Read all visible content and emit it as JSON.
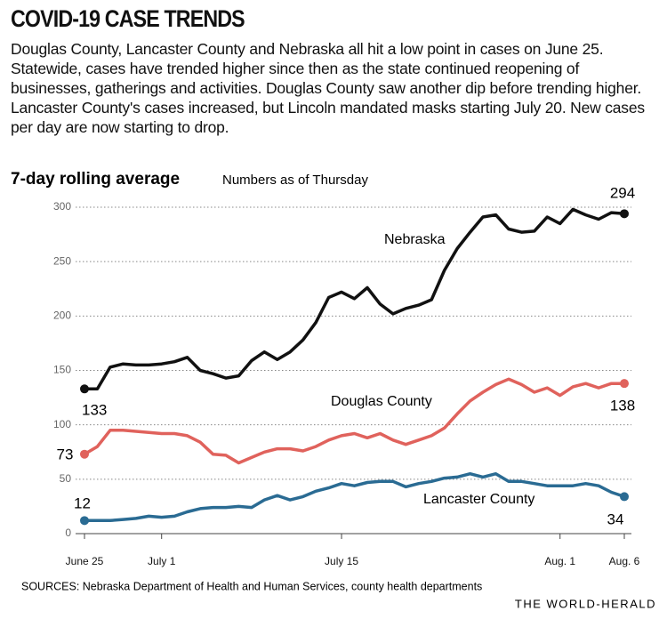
{
  "chart_data": {
    "type": "line",
    "title": "COVID-19 CASE TRENDS",
    "subtitle": "Douglas County, Lancaster County and Nebraska all hit a low point in cases on June 25. Statewide, cases have trended higher since then as the state continued reopening of businesses, gatherings and activities. Douglas County saw another dip before trending higher. Lancaster County's cases increased, but Lincoln mandated masks starting July 20. New cases per day are now starting to drop.",
    "chart_title": "7-day rolling average",
    "chart_note": "Numbers as of Thursday",
    "source": "SOURCES: Nebraska Department of Health and Human Services, county health departments",
    "credit": "THE WORLD-HERALD",
    "categories": [
      "June 25",
      null,
      null,
      null,
      null,
      null,
      "July 1",
      null,
      null,
      null,
      null,
      null,
      null,
      null,
      null,
      null,
      null,
      null,
      null,
      null,
      "July 15",
      null,
      null,
      null,
      null,
      null,
      null,
      null,
      null,
      null,
      null,
      null,
      null,
      null,
      null,
      null,
      null,
      "Aug. 1",
      null,
      null,
      null,
      null,
      "Aug. 6"
    ],
    "series": [
      {
        "name": "Nebraska",
        "color": "#111111",
        "values": [
          133,
          133,
          153,
          156,
          155,
          155,
          156,
          158,
          162,
          150,
          147,
          143,
          145,
          159,
          167,
          160,
          167,
          178,
          194,
          217,
          222,
          216,
          226,
          211,
          202,
          207,
          210,
          215,
          242,
          262,
          277,
          291,
          293,
          280,
          277,
          278,
          291,
          285,
          298,
          293,
          289,
          295,
          294
        ]
      },
      {
        "name": "Douglas County",
        "color": "#e0625c",
        "values": [
          73,
          80,
          95,
          95,
          94,
          93,
          92,
          92,
          90,
          84,
          73,
          72,
          65,
          70,
          75,
          78,
          78,
          76,
          80,
          86,
          90,
          92,
          88,
          92,
          86,
          82,
          86,
          90,
          97,
          110,
          122,
          130,
          137,
          142,
          137,
          130,
          134,
          127,
          135,
          138,
          134,
          138,
          138
        ]
      },
      {
        "name": "Lancaster County",
        "color": "#2a6b93",
        "values": [
          12,
          12,
          12,
          13,
          14,
          16,
          15,
          16,
          20,
          23,
          24,
          24,
          25,
          24,
          31,
          35,
          31,
          34,
          39,
          42,
          46,
          44,
          47,
          48,
          48,
          43,
          46,
          48,
          51,
          52,
          55,
          52,
          55,
          48,
          48,
          46,
          44,
          44,
          44,
          46,
          44,
          38,
          34
        ]
      }
    ],
    "ylim": [
      0,
      300
    ],
    "yticks": [
      0,
      50,
      100,
      150,
      200,
      250,
      300
    ],
    "grid": true
  }
}
